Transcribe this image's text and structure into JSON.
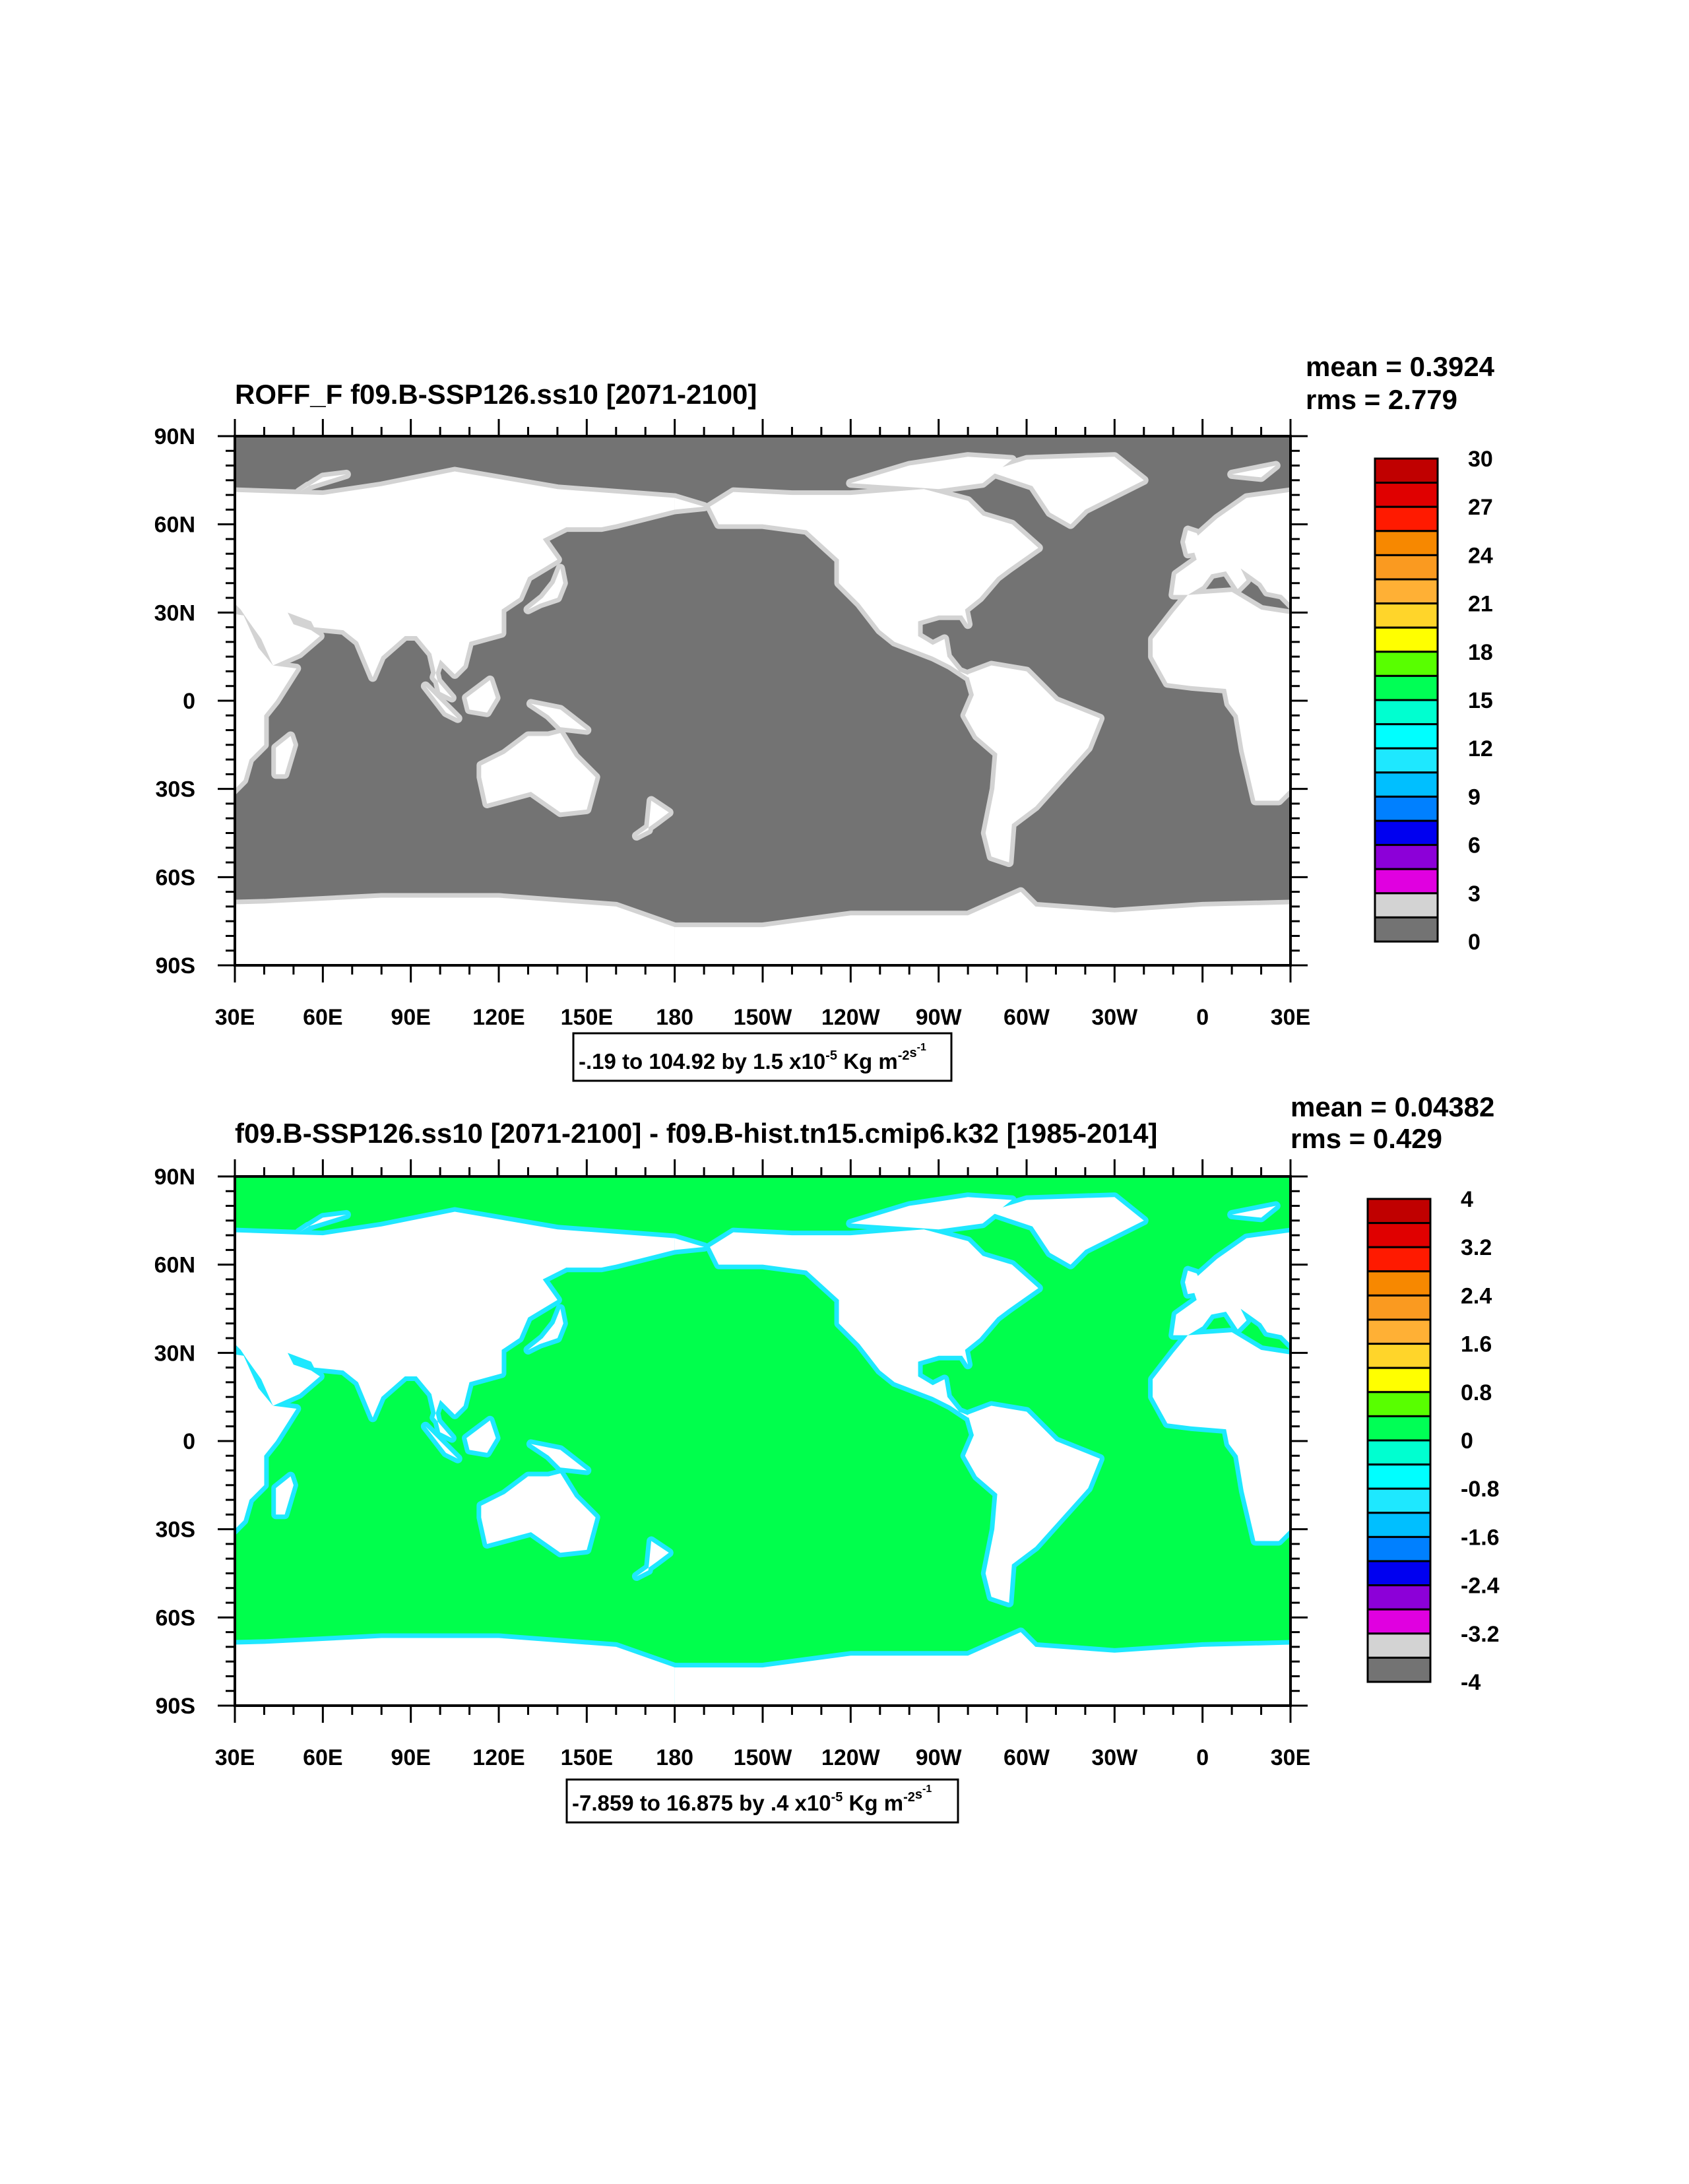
{
  "chart_data": [
    {
      "type": "heatmap",
      "subtype": "global-map",
      "title": "ROFF_F f09.B-SSP126.ss10 [2071-2100]",
      "mean_label": "mean = 0.3924",
      "rms_label": "rms = 2.779",
      "x_ticks": [
        "30E",
        "60E",
        "90E",
        "120E",
        "150E",
        "180",
        "150W",
        "120W",
        "90W",
        "60W",
        "30W",
        "0",
        "30E"
      ],
      "y_ticks": [
        "90N",
        "60N",
        "30N",
        "0",
        "30S",
        "60S",
        "90S"
      ],
      "xlim": [
        30,
        390
      ],
      "ylim": [
        -90,
        90
      ],
      "ocean_color": "#737373",
      "land_color": "#ffffff",
      "coast_color": "#d3d3d3",
      "colorbar_labels": [
        "30",
        "27",
        "24",
        "21",
        "18",
        "15",
        "12",
        "9",
        "6",
        "3",
        "0"
      ],
      "colorbar_levels": [
        0,
        1.5,
        3,
        4.5,
        6,
        7.5,
        9,
        10.5,
        12,
        13.5,
        15,
        16.5,
        18,
        19.5,
        21,
        22.5,
        24,
        25.5,
        27,
        28.5,
        30
      ],
      "range": {
        "text": "-.19 to 104.92 by 1.5 x10",
        "exp": "-5",
        "units": " Kg m",
        "units_exp": "-2",
        "units2": "s",
        "units2_exp": "-1"
      }
    },
    {
      "type": "heatmap",
      "subtype": "global-map",
      "title": "f09.B-SSP126.ss10 [2071-2100] - f09.B-hist.tn15.cmip6.k32 [1985-2014]",
      "mean_label": "mean = 0.04382",
      "rms_label": "rms = 0.429",
      "x_ticks": [
        "30E",
        "60E",
        "90E",
        "120E",
        "150E",
        "180",
        "150W",
        "120W",
        "90W",
        "60W",
        "30W",
        "0",
        "30E"
      ],
      "y_ticks": [
        "90N",
        "60N",
        "30N",
        "0",
        "30S",
        "60S",
        "90S"
      ],
      "xlim": [
        30,
        390
      ],
      "ylim": [
        -90,
        90
      ],
      "ocean_color": "#00ff4c",
      "land_color": "#ffffff",
      "coast_color": "#1ee8ff",
      "colorbar_labels": [
        "4",
        "3.2",
        "2.4",
        "1.6",
        "0.8",
        "0",
        "-0.8",
        "-1.6",
        "-2.4",
        "-3.2",
        "-4"
      ],
      "colorbar_levels": [
        -4,
        -3.6,
        -3.2,
        -2.8,
        -2.4,
        -2,
        -1.6,
        -1.2,
        -0.8,
        -0.4,
        0,
        0.4,
        0.8,
        1.2,
        1.6,
        2,
        2.4,
        2.8,
        3.2,
        3.6,
        4
      ],
      "range": {
        "text": "-7.859 to 16.875 by .4 x10",
        "exp": "-5",
        "units": " Kg m",
        "units_exp": "-2",
        "units2": "s",
        "units2_exp": "-1"
      }
    }
  ],
  "colorbar_colors": [
    "#c00000",
    "#e00000",
    "#ff1a00",
    "#f78800",
    "#fa9a20",
    "#ffb035",
    "#ffd52a",
    "#ffff00",
    "#58ff00",
    "#00ff55",
    "#00ffd0",
    "#00ffff",
    "#1ee8ff",
    "#00bfff",
    "#0080ff",
    "#0000f0",
    "#8c00d8",
    "#e000e0",
    "#d3d3d3",
    "#737373"
  ]
}
